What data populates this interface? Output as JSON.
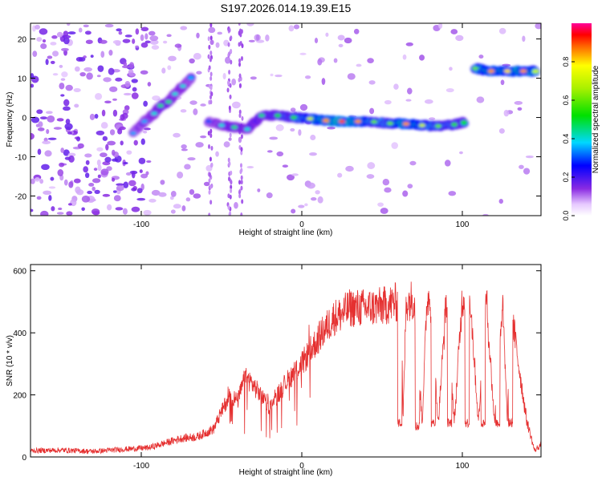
{
  "title": "S197.2026.014.19.39.E15",
  "chart_data": [
    {
      "type": "heatmap",
      "name": "spectrogram",
      "xlabel": "Height of straight line (km)",
      "ylabel": "Frequency (Hz)",
      "xlim": [
        -169,
        149
      ],
      "ylim": [
        -25,
        24
      ],
      "xticks": [
        -100,
        0,
        100
      ],
      "yticks": [
        -20,
        -10,
        0,
        10,
        20
      ],
      "ridge": [
        {
          "x": -105,
          "y": -4,
          "amp": 0.35
        },
        {
          "x": -98,
          "y": -1,
          "amp": 0.35
        },
        {
          "x": -92,
          "y": 1,
          "amp": 0.4
        },
        {
          "x": -88,
          "y": 3,
          "amp": 0.45
        },
        {
          "x": -83,
          "y": 4,
          "amp": 0.45
        },
        {
          "x": -79,
          "y": 6,
          "amp": 0.4
        },
        {
          "x": -74,
          "y": 8,
          "amp": 0.4
        },
        {
          "x": -69,
          "y": 10,
          "amp": 0.35
        },
        {
          "x": -58,
          "y": -1,
          "amp": 0.3
        },
        {
          "x": -50,
          "y": -2,
          "amp": 0.4
        },
        {
          "x": -42,
          "y": -2.5,
          "amp": 0.45
        },
        {
          "x": -34,
          "y": -3,
          "amp": 0.4
        },
        {
          "x": -25,
          "y": 0.5,
          "amp": 0.45
        },
        {
          "x": -15,
          "y": 0.5,
          "amp": 0.5
        },
        {
          "x": -5,
          "y": 0,
          "amp": 0.55
        },
        {
          "x": 5,
          "y": -0.3,
          "amp": 0.7
        },
        {
          "x": 15,
          "y": -0.8,
          "amp": 0.85
        },
        {
          "x": 25,
          "y": -1,
          "amp": 0.9
        },
        {
          "x": 35,
          "y": -1,
          "amp": 0.85
        },
        {
          "x": 45,
          "y": -1.1,
          "amp": 0.6
        },
        {
          "x": 55,
          "y": -1.5,
          "amp": 0.6
        },
        {
          "x": 65,
          "y": -1.6,
          "amp": 0.85
        },
        {
          "x": 75,
          "y": -2,
          "amp": 0.7
        },
        {
          "x": 85,
          "y": -2.2,
          "amp": 0.6
        },
        {
          "x": 95,
          "y": -1.8,
          "amp": 0.55
        },
        {
          "x": 101,
          "y": -1.2,
          "amp": 0.5
        },
        {
          "x": 108,
          "y": 12.5,
          "amp": 0.6
        },
        {
          "x": 118,
          "y": 11.8,
          "amp": 0.85
        },
        {
          "x": 128,
          "y": 11.8,
          "amp": 0.8
        },
        {
          "x": 138,
          "y": 11.8,
          "amp": 0.85
        },
        {
          "x": 146,
          "y": 11.8,
          "amp": 0.7
        }
      ]
    },
    {
      "type": "line",
      "name": "snr",
      "xlabel": "Height of straight line (km)",
      "ylabel": "SNR (10 * v/v)",
      "xlim": [
        -169,
        149
      ],
      "ylim": [
        0,
        620
      ],
      "xticks": [
        -100,
        0,
        100
      ],
      "yticks": [
        0,
        200,
        400,
        600
      ],
      "series": [
        {
          "name": "SNR",
          "color": "#e53030",
          "x": [
            -169,
            -150,
            -130,
            -110,
            -95,
            -85,
            -75,
            -65,
            -55,
            -45,
            -40,
            -35,
            -30,
            -20,
            -10,
            0,
            10,
            20,
            25,
            30,
            40,
            50,
            60,
            62,
            63,
            65,
            70,
            75,
            78,
            80,
            85,
            90,
            95,
            100,
            105,
            110,
            115,
            120,
            125,
            128,
            130,
            135,
            140,
            145,
            149
          ],
          "y": [
            20,
            22,
            18,
            25,
            30,
            45,
            60,
            65,
            90,
            200,
            180,
            260,
            230,
            160,
            240,
            300,
            380,
            450,
            460,
            480,
            480,
            485,
            500,
            490,
            110,
            500,
            510,
            110,
            510,
            515,
            110,
            510,
            110,
            515,
            510,
            110,
            510,
            110,
            500,
            110,
            490,
            300,
            120,
            20,
            40
          ],
          "dips": [
            {
              "x": 61,
              "y": 110
            },
            {
              "x": 72,
              "y": 100
            },
            {
              "x": 82,
              "y": 110
            },
            {
              "x": 92,
              "y": 110
            },
            {
              "x": 103,
              "y": 110
            },
            {
              "x": 113,
              "y": 110
            },
            {
              "x": 122,
              "y": 110
            },
            {
              "x": 130,
              "y": 110
            }
          ]
        }
      ]
    }
  ],
  "colorbar": {
    "label": "Normalized spectral amplitude",
    "ticks": [
      "0.0",
      "0.2",
      "0.4",
      "0.6",
      "0.8"
    ],
    "values": [
      0,
      0.2,
      0.4,
      0.6,
      0.8
    ],
    "range": [
      0,
      1
    ]
  }
}
